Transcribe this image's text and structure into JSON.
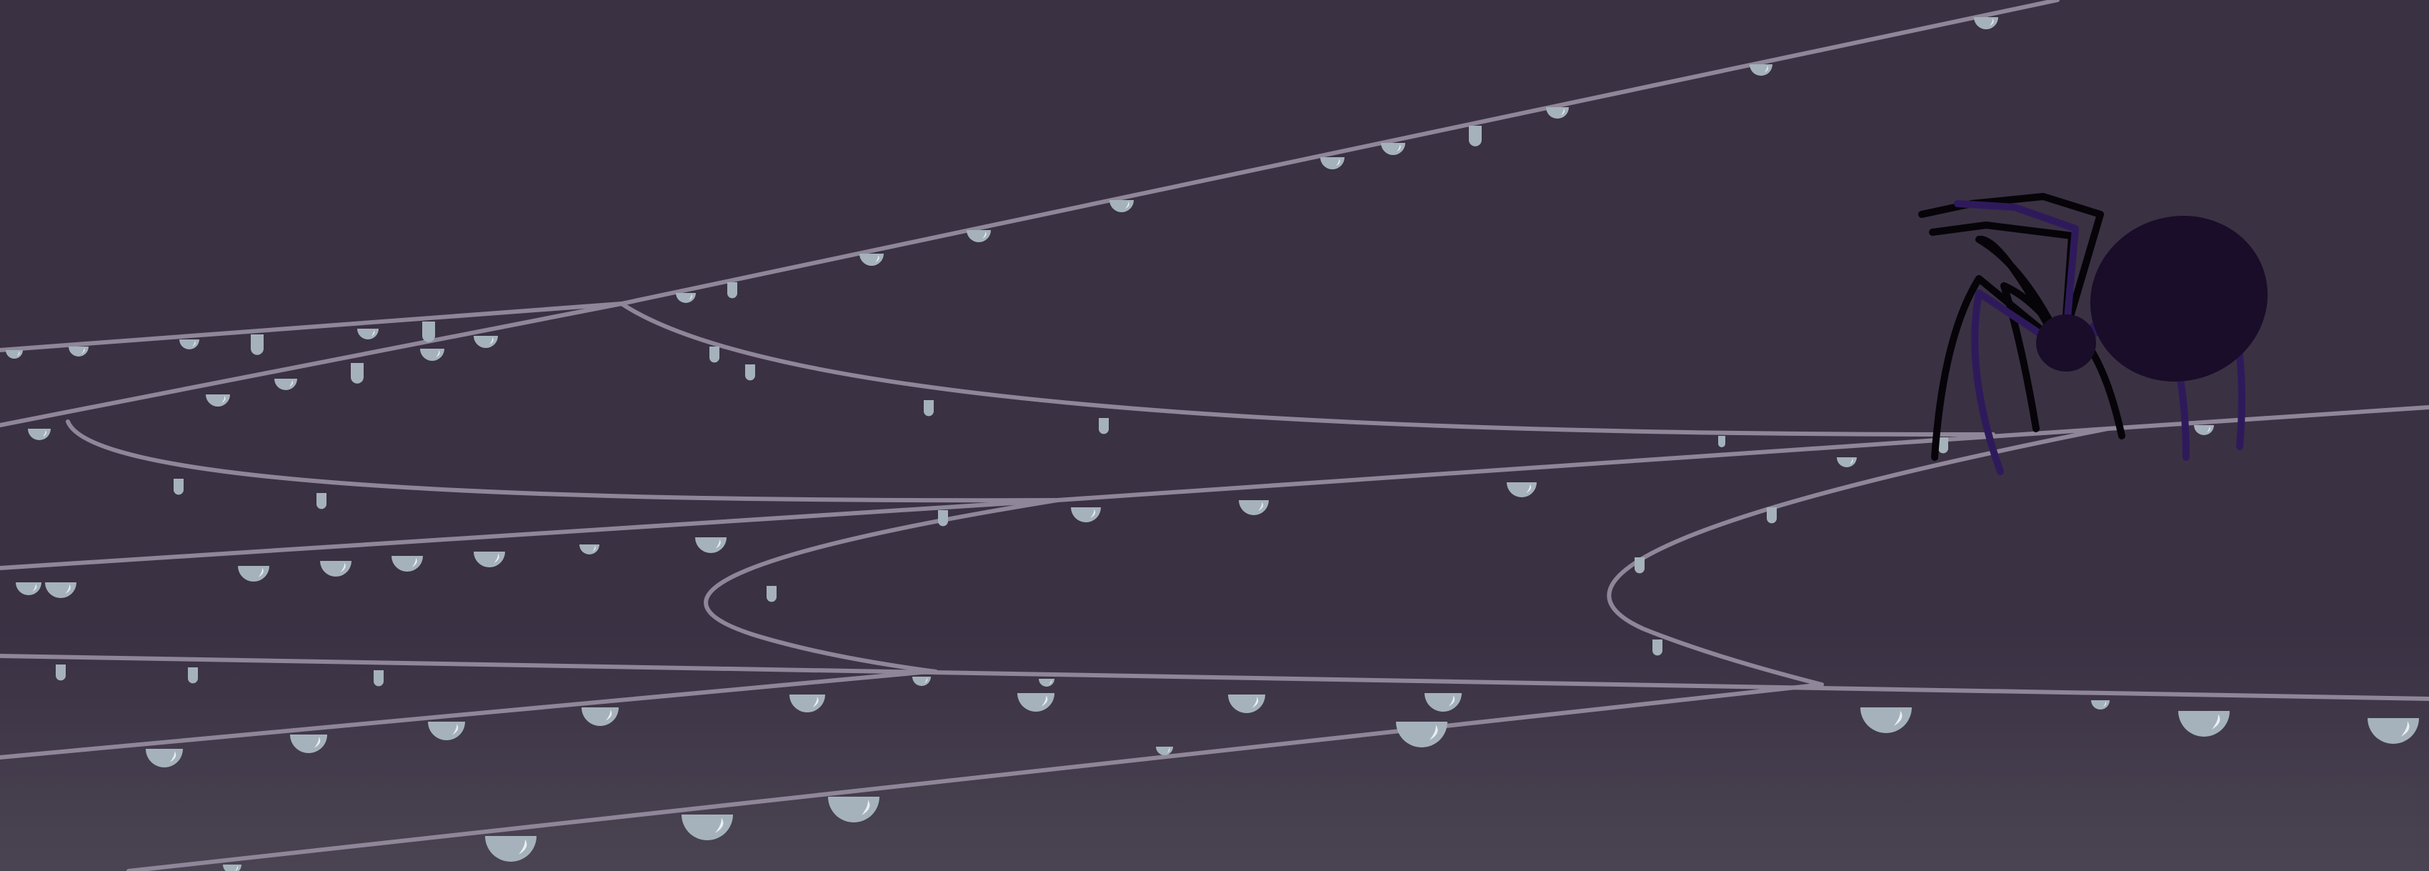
{
  "scene": {
    "subject": "spider-on-dewy-web",
    "colors": {
      "background_top": "#3a3143",
      "background_bottom": "#4a4452",
      "web_strand": "#8f8799",
      "dewdrop": "#a5b2bb",
      "dewdrop_shine": "#e9eef2",
      "spider_body": "#190d29",
      "spider_legs_dark": "#060408",
      "spider_legs_purple": "#2e1a5b"
    }
  }
}
